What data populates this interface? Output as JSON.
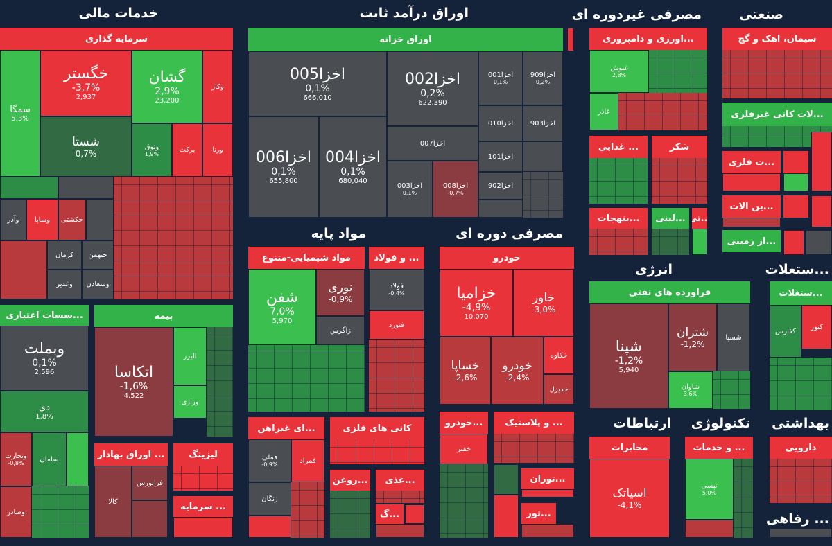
{
  "sections": {
    "financial": "خدمات مالی",
    "fixed_income": "اوراق درآمد ثابت",
    "non_cyclical": "مصرفی غیردوره ای",
    "industrial": "صنعتی",
    "basic_materials": "مواد پایه",
    "cyclical": "مصرفی دوره ای",
    "energy": "انرژی",
    "telecom": "ارتباطات",
    "technology": "تکنولوژی",
    "health": "بهداشتی",
    "utilities": "...ستغلات",
    "welfare": "... رفاهی"
  },
  "groups": {
    "investment": "سرمایه گذاری",
    "credit": "...سسات اعتباری",
    "insurance": "بیمه",
    "securities": "... اوراق بهادار",
    "leasing": "لیزینگ",
    "capital": "... سرمایه",
    "treasury": "اوراق خزانه",
    "chemicals": "مواد شیمیایی-متنوع",
    "steel": "... و فولاد",
    "nonmetal_minerals": "...ای غیراهن",
    "metal_minerals": "کانی های فلزی",
    "oils": "...روغن",
    "food_misc": "...غذی",
    "g_misc": "...گ",
    "auto": "خودرو",
    "auto_parts": "...خودرو",
    "plastics": "... و پلاستیک",
    "tourism": "...توران",
    "tour": "...تور",
    "pharma_retail": "...اورزی و دامپروری",
    "food": "... غذایی",
    "sugar": "شکر",
    "dairy": "...لبنی",
    "cement": "سیمان، اهک و گچ",
    "nonmetal": "...لات کانی غیرفلزی",
    "metal_products": "...ت فلزی",
    "machinery": "...ین الات",
    "land": "...ار زمینی",
    "refined_oil": "فراورده های نفتی",
    "telecom_co": "مخابرات",
    "it_services": "... و خدمات",
    "pharma": "دارویی",
    "utilities_h": "...ستغلات",
    "comp": "...تی",
    "spices": "...ینهجات"
  },
  "tickers": {
    "khegostar": {
      "name": "خگستر",
      "pct": "-3,7%",
      "vol": "2,937"
    },
    "gashan": {
      "name": "گشان",
      "pct": "2,9%",
      "vol": "23,200"
    },
    "semaga": {
      "name": "سمگا",
      "pct": "5,3%"
    },
    "shasta": {
      "name": "شستا",
      "pct": "0,7%"
    },
    "vothough": {
      "name": "وثوق",
      "pct": "1,9%"
    },
    "barkat": {
      "name": "برکت"
    },
    "vara": {
      "name": "ورنا"
    },
    "vkar": {
      "name": "وکار"
    },
    "hakshti": {
      "name": "حکشتی"
    },
    "vesapa": {
      "name": "وساپا"
    },
    "vazar": {
      "name": "وآذر"
    },
    "kerman": {
      "name": "کرمان"
    },
    "khahman": {
      "name": "خبهمن"
    },
    "vaghadir": {
      "name": "وغدیر"
    },
    "vasadan": {
      "name": "وسعادن"
    },
    "vabemellat": {
      "name": "وبملت",
      "pct": "0,1%",
      "vol": "2,596"
    },
    "day": {
      "name": "دی",
      "pct": "1,8%"
    },
    "atkasa": {
      "name": "اتکاسا",
      "pct": "-1,6%",
      "vol": "4,522"
    },
    "alborz": {
      "name": "البرز"
    },
    "vkaraz": {
      "name": "ورازی"
    },
    "vatejarat": {
      "name": "وتجارت",
      "pct": "-0,8%"
    },
    "saman": {
      "name": "سامان"
    },
    "vesdadar": {
      "name": "وصادر"
    },
    "faraboors": {
      "name": "فرابورس"
    },
    "kala": {
      "name": "کالا"
    },
    "akhza005": {
      "name": "اخزا005",
      "pct": "0,1%",
      "vol": "666,010"
    },
    "akhza002": {
      "name": "اخزا002",
      "pct": "0,2%",
      "vol": "622,390"
    },
    "akhza001": {
      "name": "اخزا001",
      "pct": "0,1%"
    },
    "akhza909": {
      "name": "اخزا909",
      "pct": "0,2%"
    },
    "akhza010": {
      "name": "اخزا010"
    },
    "akhza903": {
      "name": "اخزا903"
    },
    "akhza006": {
      "name": "اخزا006",
      "pct": "0,1%",
      "vol": "655,800"
    },
    "akhza004": {
      "name": "اخزا004",
      "pct": "0,1%",
      "vol": "680,040"
    },
    "akhza007": {
      "name": "اخزا007"
    },
    "akhza101": {
      "name": "اخزا101"
    },
    "akhza003": {
      "name": "اخزا003",
      "pct": "0,1%"
    },
    "akhza008": {
      "name": "اخزا008",
      "pct": "-0,7%"
    },
    "akhza902": {
      "name": "اخزا902"
    },
    "shafan": {
      "name": "شفن",
      "pct": "7,0%",
      "vol": "5,970"
    },
    "nouri": {
      "name": "نوری",
      "pct": "-0,9%"
    },
    "zagros": {
      "name": "زاگرس"
    },
    "foulad": {
      "name": "فولاد",
      "pct": "-0,4%"
    },
    "fanvar": {
      "name": "فنورد"
    },
    "famli": {
      "name": "فملی",
      "pct": "-0,9%"
    },
    "famrad": {
      "name": "فمراد"
    },
    "zangan": {
      "name": "زنگان"
    },
    "khazamia": {
      "name": "خزامیا",
      "pct": "-4,9%",
      "vol": "10,070"
    },
    "khavar": {
      "name": "خاور",
      "pct": "-3,0%"
    },
    "khesapa": {
      "name": "خساپا",
      "pct": "-2,6%"
    },
    "khodro": {
      "name": "خودرو",
      "pct": "-2,4%"
    },
    "khkaveh": {
      "name": "خکاوه"
    },
    "khdizel": {
      "name": "خدیزل"
    },
    "khaftor": {
      "name": "خفنر"
    },
    "ghnoosh": {
      "name": "غنوش",
      "pct": "2,8%"
    },
    "ghazar": {
      "name": "غاذر"
    },
    "shepna": {
      "name": "شپنا",
      "pct": "-1,2%",
      "vol": "5,940"
    },
    "shetran": {
      "name": "شتران",
      "pct": "-1,2%"
    },
    "shespa": {
      "name": "شسپا"
    },
    "shavan": {
      "name": "شاوان",
      "pct": "3,6%"
    },
    "asiatek": {
      "name": "اسیاتک",
      "pct": "-4,1%"
    },
    "tapsi": {
      "name": "تپسی",
      "pct": "5,0%"
    },
    "kfars": {
      "name": "کفارس"
    },
    "kanur": {
      "name": "کنور"
    }
  }
}
